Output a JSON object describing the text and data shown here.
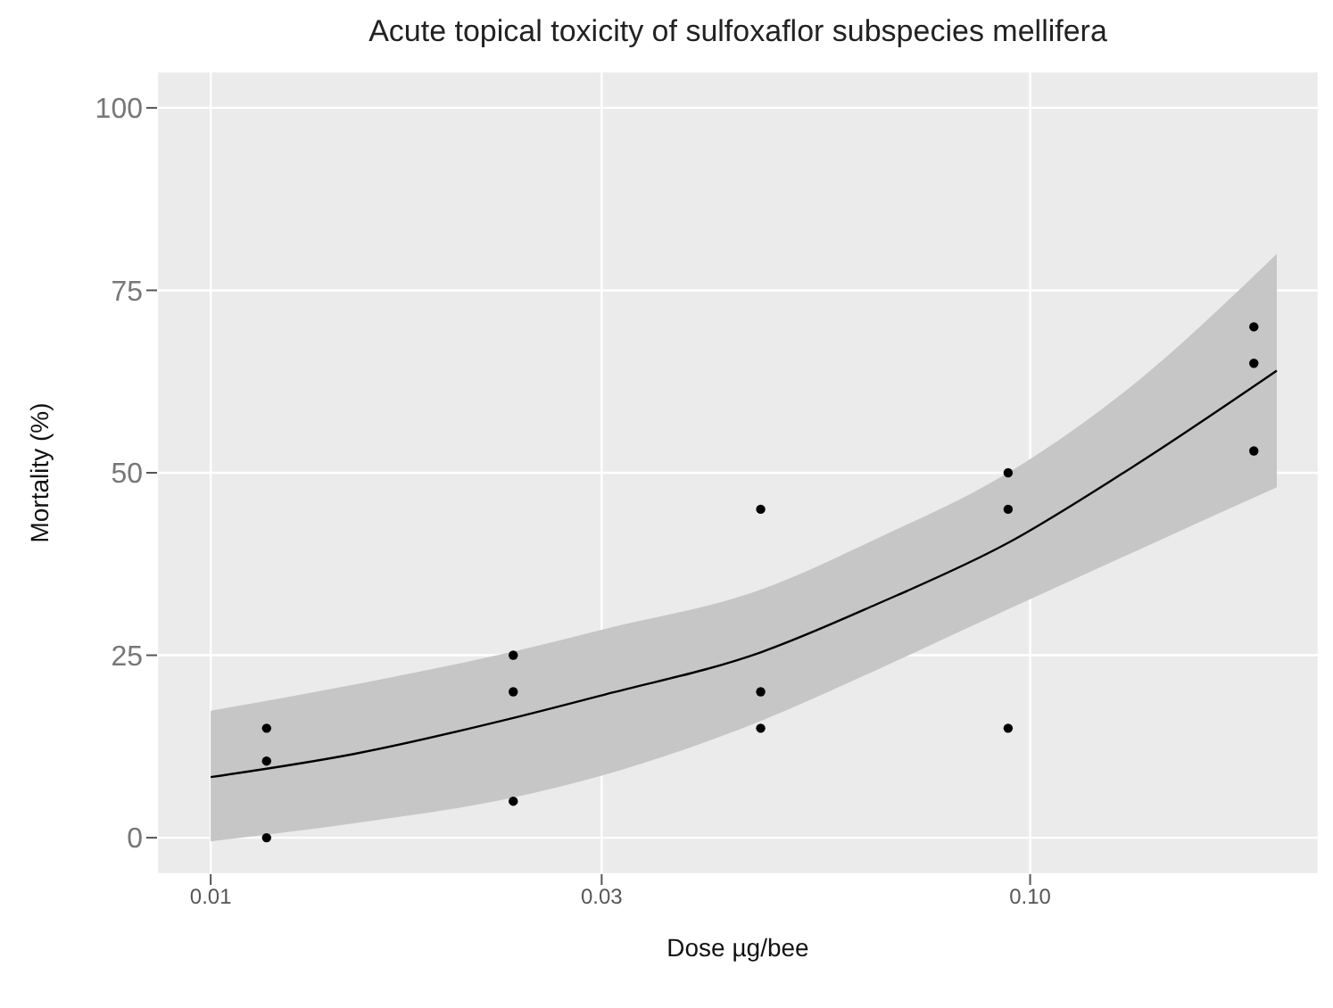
{
  "chart_data": {
    "type": "scatter",
    "title": "Acute topical toxicity of sulfoxaflor subspecies mellifera",
    "xlabel": "Dose µg/bee",
    "ylabel": "Mortality (%)",
    "log": "x",
    "grid": true,
    "xlim": [
      0.0086,
      0.225
    ],
    "xticks": [
      0.01,
      0.03,
      {
        "value": 0.1,
        "label": "0.10"
      }
    ],
    "ylim": [
      -5,
      105
    ],
    "yticks": [
      0,
      25,
      50,
      75,
      100
    ],
    "series": [
      {
        "marker": "circle",
        "color": "#000000",
        "x": [
          0.0117,
          0.0117,
          0.0117,
          0.0234,
          0.0234,
          0.0234,
          0.0469,
          0.0469,
          0.0469,
          0.094,
          0.094,
          0.094,
          0.1875,
          0.1875,
          0.1875
        ],
        "values": [
          15,
          10.5,
          0,
          25,
          20,
          5,
          45,
          20,
          15,
          50,
          45,
          15,
          70,
          65,
          53
        ]
      },
      {
        "type": "line",
        "marker": "none",
        "color": "#000000",
        "x": [
          0.01,
          0.015,
          0.0234,
          0.03,
          0.0469,
          0.065,
          0.094,
          0.13,
          0.2
        ],
        "values": [
          8.3,
          11.5,
          16.4,
          19.5,
          25.4,
          32,
          40.4,
          50,
          64
        ],
        "lower": [
          -0.5,
          2,
          5.5,
          8.5,
          16,
          23,
          31.3,
          38.5,
          48
        ],
        "upper": [
          17.4,
          21,
          25.5,
          28.5,
          34,
          41,
          50,
          61,
          80
        ]
      }
    ]
  }
}
